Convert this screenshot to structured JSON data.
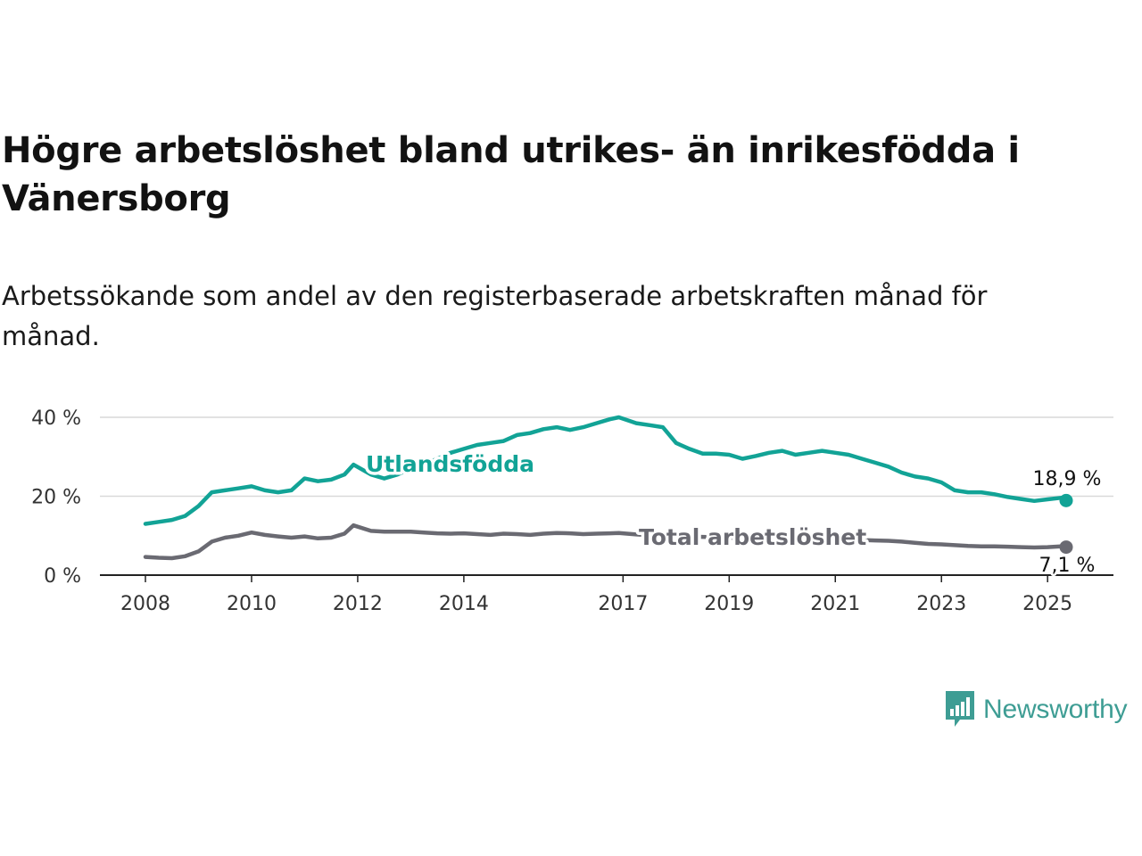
{
  "title": "Högre arbetslöshet bland utrikes- än inrikesfödda i Vänersborg",
  "subtitle": "Arbetssökande som andel av den registerbaserade arbetskraften månad för månad.",
  "brand": {
    "name": "Newsworthy",
    "color": "#3e9d94",
    "icon": "bar-chart-speech-bubble-icon"
  },
  "chart_data": {
    "type": "line",
    "x_ticks": [
      "2008",
      "2010",
      "2012",
      "2014",
      "2017",
      "2019",
      "2021",
      "2023",
      "2025"
    ],
    "y_ticks": [
      "0 %",
      "20 %",
      "40 %"
    ],
    "ylim": [
      0,
      40
    ],
    "xlim": [
      2008.0,
      2026.3
    ],
    "grid": true,
    "series": [
      {
        "name": "Utlandsfödda",
        "color": "#12a396",
        "end_label": "18,9 %",
        "x": [
          2008.0,
          2008.25,
          2008.5,
          2008.75,
          2009.0,
          2009.25,
          2009.5,
          2009.75,
          2010.0,
          2010.25,
          2010.5,
          2010.75,
          2011.0,
          2011.25,
          2011.5,
          2011.75,
          2011.92,
          2012.25,
          2012.5,
          2012.75,
          2013.0,
          2013.25,
          2013.5,
          2013.75,
          2014.0,
          2014.25,
          2014.5,
          2014.75,
          2015.0,
          2015.25,
          2015.5,
          2015.75,
          2016.0,
          2016.25,
          2016.5,
          2016.75,
          2016.92,
          2017.25,
          2017.5,
          2017.75,
          2018.0,
          2018.25,
          2018.5,
          2018.75,
          2019.0,
          2019.25,
          2019.5,
          2019.75,
          2020.0,
          2020.25,
          2020.5,
          2020.75,
          2021.0,
          2021.25,
          2021.5,
          2021.75,
          2022.0,
          2022.25,
          2022.5,
          2022.75,
          2023.0,
          2023.25,
          2023.5,
          2023.75,
          2024.0,
          2024.25,
          2024.5,
          2024.75,
          2025.0,
          2025.25,
          2025.35
        ],
        "values": [
          13.0,
          13.5,
          14.0,
          15.0,
          17.5,
          21.0,
          21.5,
          22.0,
          22.5,
          21.5,
          21.0,
          21.5,
          24.5,
          23.8,
          24.2,
          25.5,
          28.0,
          25.5,
          24.5,
          25.5,
          27.0,
          28.0,
          29.5,
          31.0,
          32.0,
          33.0,
          33.5,
          34.0,
          35.5,
          36.0,
          37.0,
          37.5,
          36.8,
          37.5,
          38.5,
          39.5,
          40.0,
          38.5,
          38.0,
          37.5,
          33.5,
          32.0,
          30.8,
          30.8,
          30.5,
          29.5,
          30.2,
          31.0,
          31.5,
          30.5,
          31.0,
          31.5,
          31.0,
          30.5,
          29.5,
          28.5,
          27.5,
          26.0,
          25.0,
          24.5,
          23.5,
          21.5,
          21.0,
          21.0,
          20.5,
          19.8,
          19.3,
          18.8,
          19.2,
          19.6,
          18.9
        ]
      },
      {
        "name": "Total arbetslöshet",
        "color": "#6a6a72",
        "end_label": "7,1 %",
        "x": [
          2008.0,
          2008.25,
          2008.5,
          2008.75,
          2009.0,
          2009.25,
          2009.5,
          2009.75,
          2010.0,
          2010.25,
          2010.5,
          2010.75,
          2011.0,
          2011.25,
          2011.5,
          2011.75,
          2011.92,
          2012.25,
          2012.5,
          2012.75,
          2013.0,
          2013.25,
          2013.5,
          2013.75,
          2014.0,
          2014.25,
          2014.5,
          2014.75,
          2015.0,
          2015.25,
          2015.5,
          2015.75,
          2016.0,
          2016.25,
          2016.5,
          2016.75,
          2016.92,
          2017.25,
          2017.5,
          2017.75,
          2018.0,
          2018.25,
          2018.5,
          2018.75,
          2019.0,
          2019.25,
          2019.5,
          2019.75,
          2020.0,
          2020.25,
          2020.5,
          2020.75,
          2021.0,
          2021.25,
          2021.5,
          2021.75,
          2022.0,
          2022.25,
          2022.5,
          2022.75,
          2023.0,
          2023.25,
          2023.5,
          2023.75,
          2024.0,
          2024.25,
          2024.5,
          2024.75,
          2025.0,
          2025.25,
          2025.35
        ],
        "values": [
          4.6,
          4.4,
          4.3,
          4.8,
          6.0,
          8.5,
          9.5,
          10.0,
          10.8,
          10.2,
          9.8,
          9.5,
          9.8,
          9.3,
          9.5,
          10.5,
          12.6,
          11.2,
          11.0,
          11.0,
          11.0,
          10.8,
          10.6,
          10.5,
          10.6,
          10.4,
          10.2,
          10.5,
          10.4,
          10.2,
          10.5,
          10.7,
          10.6,
          10.4,
          10.5,
          10.6,
          10.7,
          10.3,
          10.1,
          10.0,
          9.9,
          9.8,
          9.7,
          9.6,
          9.5,
          9.4,
          9.4,
          9.4,
          9.5,
          9.4,
          9.3,
          9.2,
          9.1,
          9.0,
          8.9,
          8.8,
          8.7,
          8.5,
          8.2,
          7.9,
          7.8,
          7.6,
          7.4,
          7.3,
          7.3,
          7.2,
          7.1,
          7.0,
          7.1,
          7.3,
          7.1
        ]
      }
    ]
  }
}
